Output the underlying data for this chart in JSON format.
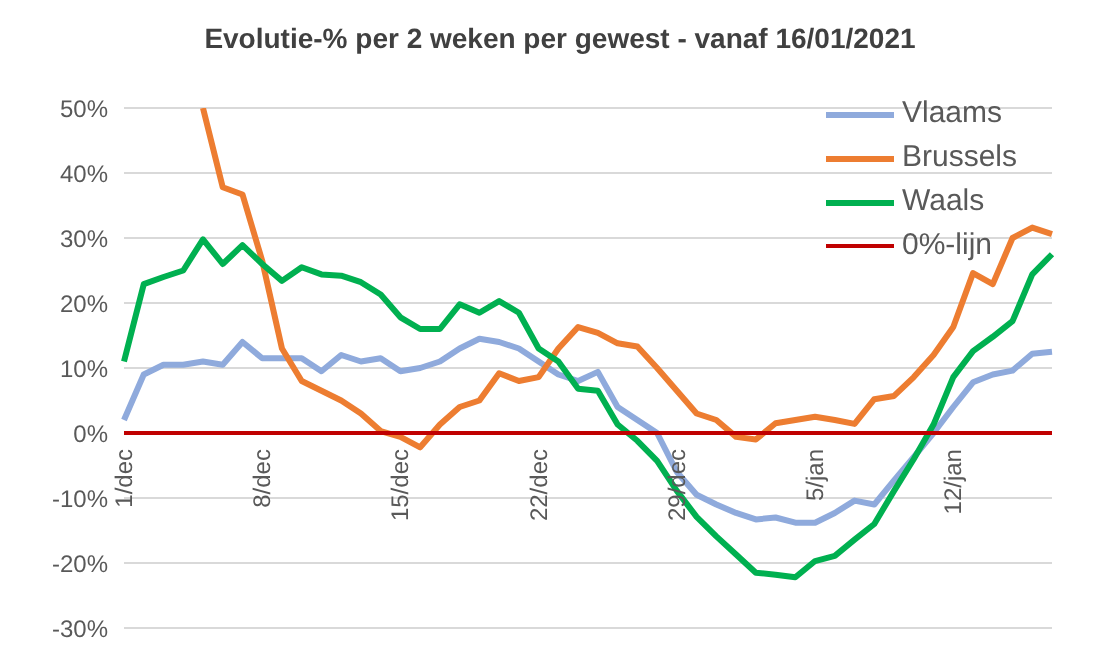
{
  "chart_data": {
    "type": "line",
    "title": "Evolutie-% per 2 weken per gewest - vanaf 16/01/2021",
    "categories": [
      "1/dec",
      null,
      null,
      null,
      null,
      null,
      null,
      "8/dec",
      null,
      null,
      null,
      null,
      null,
      null,
      "15/dec",
      null,
      null,
      null,
      null,
      null,
      null,
      "22/dec",
      null,
      null,
      null,
      null,
      null,
      null,
      "29/dec",
      null,
      null,
      null,
      null,
      null,
      null,
      "5/jan",
      null,
      null,
      null,
      null,
      null,
      null,
      "12/jan",
      null,
      null,
      null,
      null,
      null
    ],
    "series": [
      {
        "name": "Vlaams",
        "color": "#8faadc",
        "values": [
          2,
          9,
          10.5,
          10.5,
          11,
          10.5,
          14,
          11.5,
          11.5,
          11.5,
          9.5,
          12,
          11,
          11.5,
          9.5,
          10,
          11,
          13,
          14.5,
          14,
          13,
          11,
          9,
          8,
          9.4,
          4,
          2,
          0,
          -6,
          -9.5,
          -11,
          -12.3,
          -13.3,
          -13,
          -13.8,
          -13.8,
          -12.3,
          -10.4,
          -11,
          -7.3,
          -3.7,
          0,
          4,
          7.8,
          9,
          9.6,
          12.2,
          12.5
        ]
      },
      {
        "name": "Brussels",
        "color": "#ed7d31",
        "values": [
          null,
          null,
          null,
          null,
          50,
          37.8,
          36.7,
          26.5,
          13,
          8,
          6.5,
          5,
          3,
          0.3,
          -0.6,
          -2.2,
          1.3,
          4,
          5,
          9.2,
          8,
          8.6,
          13,
          16.3,
          15.4,
          13.8,
          13.3,
          10,
          6.5,
          3,
          2,
          -0.6,
          -1,
          1.5,
          2,
          2.5,
          2,
          1.4,
          5.2,
          5.7,
          8.6,
          12,
          16.3,
          24.6,
          22.9,
          30,
          31.6,
          30.6
        ]
      },
      {
        "name": "Waals",
        "color": "#00b050",
        "values": [
          11,
          22.9,
          24,
          25,
          29.8,
          26,
          28.9,
          26,
          23.4,
          25.5,
          24.4,
          24.2,
          23.2,
          21.3,
          17.8,
          16,
          16,
          19.8,
          18.5,
          20.3,
          18.5,
          13,
          11,
          6.8,
          6.5,
          1.3,
          -1.2,
          -4.3,
          -8.9,
          -12.9,
          -15.9,
          -18.7,
          -21.5,
          -21.8,
          -22.2,
          -19.7,
          -18.9,
          -16.4,
          -14,
          -8.9,
          -4,
          1.3,
          8.6,
          12.6,
          14.8,
          17.2,
          24.4,
          27.5
        ]
      },
      {
        "name": "0%-lijn",
        "color": "#c00000",
        "values": [
          0,
          0,
          0,
          0,
          0,
          0,
          0,
          0,
          0,
          0,
          0,
          0,
          0,
          0,
          0,
          0,
          0,
          0,
          0,
          0,
          0,
          0,
          0,
          0,
          0,
          0,
          0,
          0,
          0,
          0,
          0,
          0,
          0,
          0,
          0,
          0,
          0,
          0,
          0,
          0,
          0,
          0,
          0,
          0,
          0,
          0,
          0,
          0
        ]
      }
    ],
    "ylim": [
      -30,
      50
    ],
    "yticks": [
      {
        "value": -30,
        "label": "-30%"
      },
      {
        "value": -20,
        "label": "-20%"
      },
      {
        "value": -10,
        "label": "-10%"
      },
      {
        "value": 0,
        "label": "0%"
      },
      {
        "value": 10,
        "label": "10%"
      },
      {
        "value": 20,
        "label": "20%"
      },
      {
        "value": 30,
        "label": "30%"
      },
      {
        "value": 40,
        "label": "40%"
      },
      {
        "value": 50,
        "label": "50%"
      }
    ],
    "grid": "y",
    "legend": "top right",
    "marker": "none",
    "line_style": "solid"
  }
}
